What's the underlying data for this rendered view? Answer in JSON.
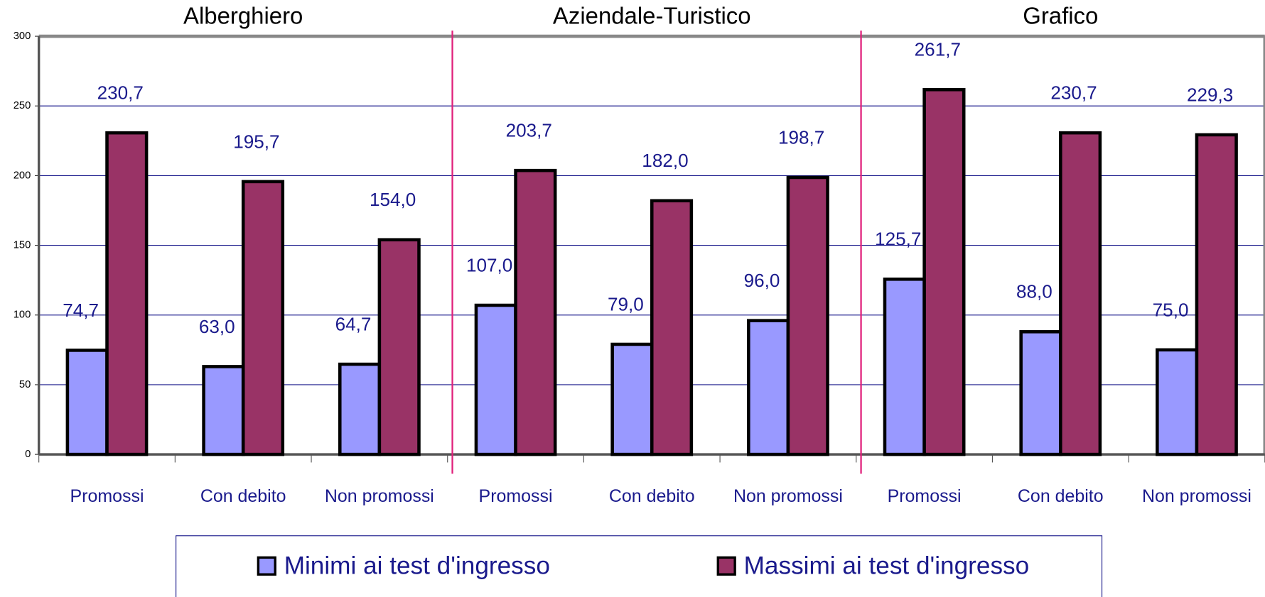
{
  "chart_data": {
    "type": "bar",
    "groups": [
      "Alberghiero",
      "Aziendale-Turistico",
      "Grafico"
    ],
    "categories": [
      "Promossi",
      "Con debito",
      "Non promossi",
      "Promossi",
      "Con debito",
      "Non promossi",
      "Promossi",
      "Con debito",
      "Non promossi"
    ],
    "series": [
      {
        "name": "Minimi ai test d'ingresso",
        "color": "#9999ff",
        "values": [
          74.7,
          63.0,
          64.7,
          107.0,
          79.0,
          96.0,
          125.7,
          88.0,
          75.0
        ],
        "value_labels": [
          "74,7",
          "63,0",
          "64,7",
          "107,0",
          "79,0",
          "96,0",
          "125,7",
          "88,0",
          "75,0"
        ]
      },
      {
        "name": "Massimi ai test d'ingresso",
        "color": "#993366",
        "values": [
          230.7,
          195.7,
          154.0,
          203.7,
          182.0,
          198.7,
          261.7,
          230.7,
          229.3
        ],
        "value_labels": [
          "230,7",
          "195,7",
          "154,0",
          "203,7",
          "182,0",
          "198,7",
          "261,7",
          "230,7",
          "229,3"
        ]
      }
    ],
    "ylim": [
      0,
      300
    ],
    "yticks": [
      0,
      50,
      100,
      150,
      200,
      250,
      300
    ],
    "grid": true
  }
}
